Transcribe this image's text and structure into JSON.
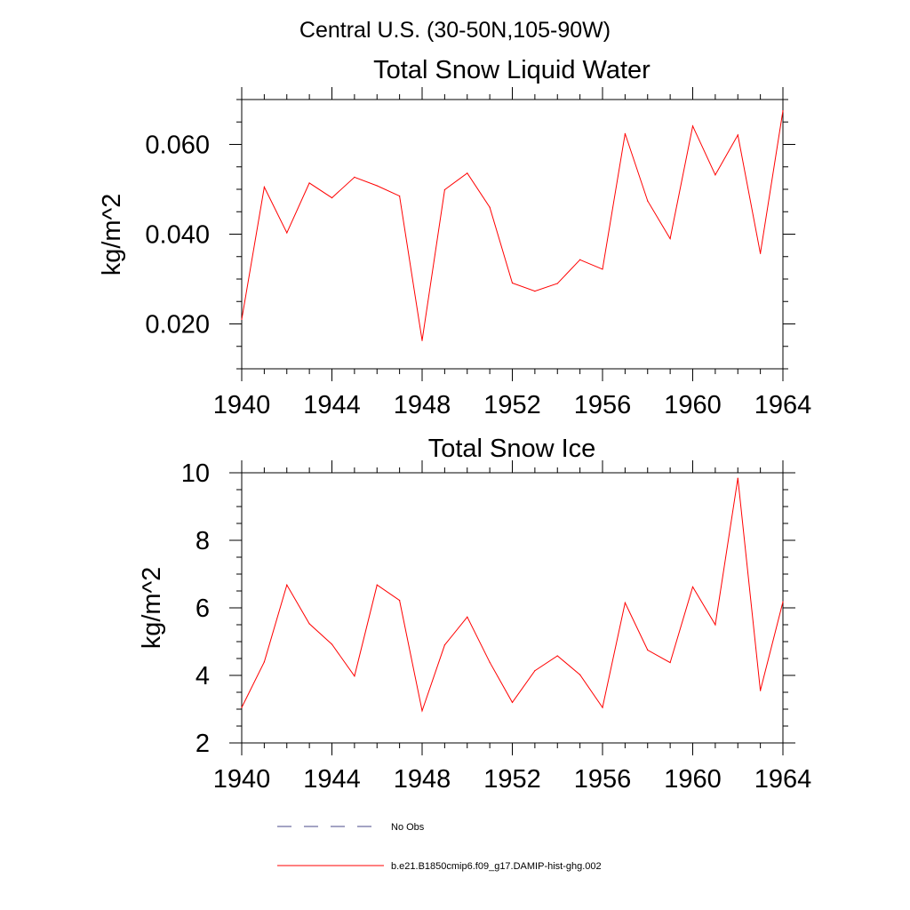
{
  "figure_title": "Central U.S. (30-50N,105-90W)",
  "legend": {
    "obs_label": "No Obs",
    "model_label": "b.e21.B1850cmip6.f09_g17.DAMIP-hist-ghg.002",
    "model_color": "#ff0000",
    "obs_color": "#4a4a8a"
  },
  "chart_data": [
    {
      "type": "line",
      "title": "Total Snow Liquid Water",
      "xlabel": "",
      "ylabel": "kg/m^2",
      "xlim": [
        1940,
        1964
      ],
      "ylim": [
        0.01,
        0.07
      ],
      "x_ticks": [
        1940,
        1944,
        1948,
        1952,
        1956,
        1960,
        1964
      ],
      "y_ticks": [
        0.02,
        0.04,
        0.06
      ],
      "y_tick_labels": [
        "0.020",
        "0.040",
        "0.060"
      ],
      "series": [
        {
          "name": "b.e21.B1850cmip6.f09_g17.DAMIP-hist-ghg.002",
          "color": "#ff0000",
          "x": [
            1940,
            1941,
            1942,
            1943,
            1944,
            1945,
            1946,
            1947,
            1948,
            1949,
            1950,
            1951,
            1952,
            1953,
            1954,
            1955,
            1956,
            1957,
            1958,
            1959,
            1960,
            1961,
            1962,
            1963,
            1964
          ],
          "values": [
            0.021,
            0.0505,
            0.0403,
            0.0514,
            0.0481,
            0.0527,
            0.0508,
            0.0485,
            0.0163,
            0.0499,
            0.0536,
            0.046,
            0.0291,
            0.0273,
            0.029,
            0.0343,
            0.0322,
            0.0624,
            0.0474,
            0.039,
            0.0641,
            0.0532,
            0.0621,
            0.0357,
            0.0675
          ]
        }
      ]
    },
    {
      "type": "line",
      "title": "Total Snow Ice",
      "xlabel": "",
      "ylabel": "kg/m^2",
      "xlim": [
        1940,
        1964
      ],
      "ylim": [
        2,
        10
      ],
      "x_ticks": [
        1940,
        1944,
        1948,
        1952,
        1956,
        1960,
        1964
      ],
      "y_ticks": [
        2,
        4,
        6,
        8,
        10
      ],
      "y_tick_labels": [
        "2",
        "4",
        "6",
        "8",
        "10"
      ],
      "series": [
        {
          "name": "b.e21.B1850cmip6.f09_g17.DAMIP-hist-ghg.002",
          "color": "#ff0000",
          "x": [
            1940,
            1941,
            1942,
            1943,
            1944,
            1945,
            1946,
            1947,
            1948,
            1949,
            1950,
            1951,
            1952,
            1953,
            1954,
            1955,
            1956,
            1957,
            1958,
            1959,
            1960,
            1961,
            1962,
            1963,
            1964
          ],
          "values": [
            3.05,
            4.4,
            6.68,
            5.53,
            4.92,
            3.98,
            6.68,
            6.22,
            2.95,
            4.9,
            5.73,
            4.39,
            3.2,
            4.14,
            4.58,
            4.02,
            3.05,
            6.15,
            4.75,
            4.38,
            6.62,
            5.5,
            9.84,
            3.55,
            6.18
          ]
        }
      ]
    }
  ]
}
